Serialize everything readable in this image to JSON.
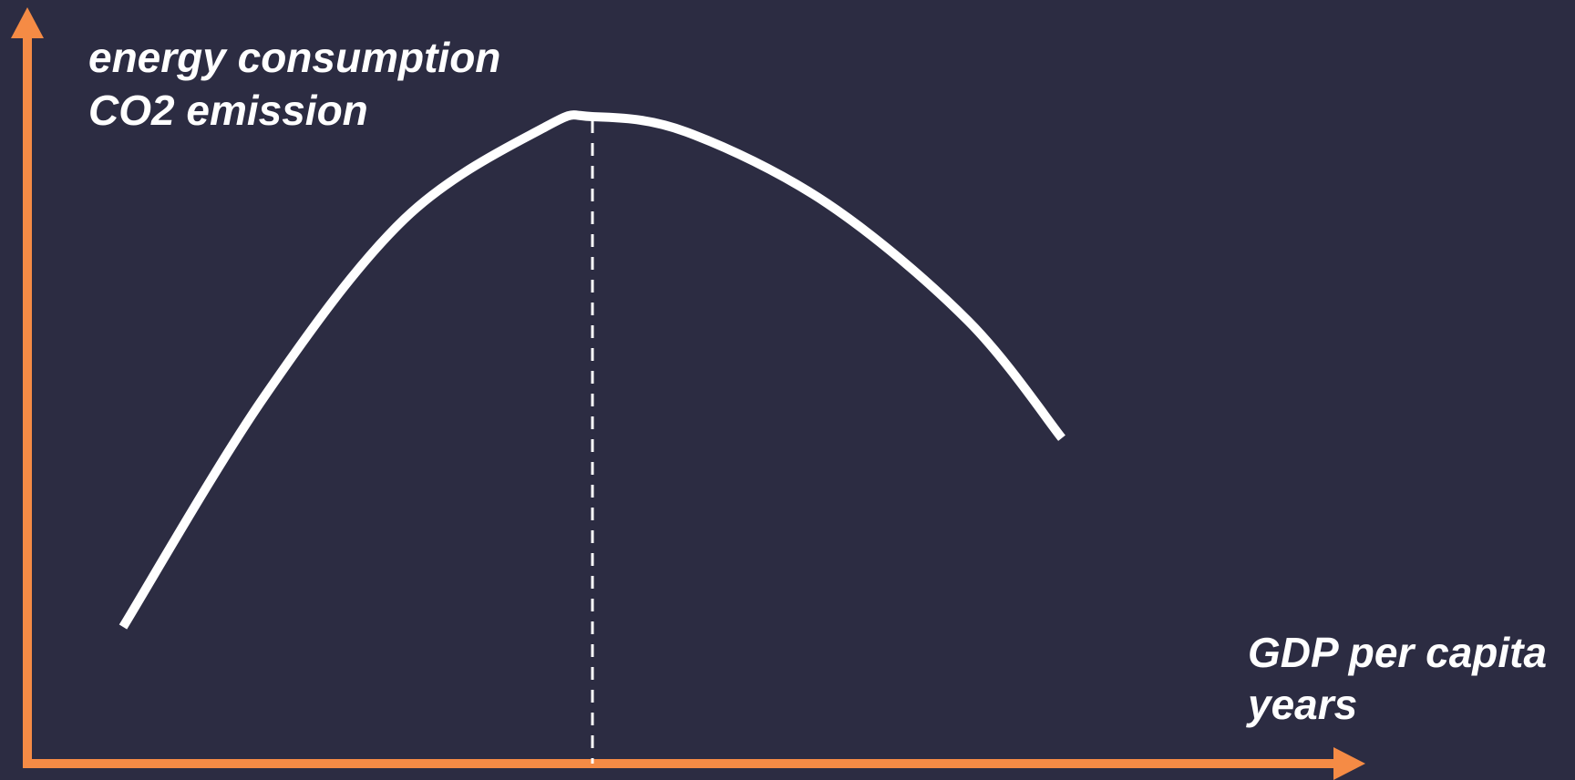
{
  "chart_data": {
    "type": "line",
    "description_shape": "inverted-U",
    "y_axis": {
      "labels": [
        "energy consumption",
        "CO2 emission"
      ]
    },
    "x_axis": {
      "labels": [
        "GDP per capita",
        "years"
      ]
    },
    "peak_marker": "dashed-vertical-line",
    "series": [
      {
        "x": [
          0.0,
          0.15,
          0.3,
          0.45,
          0.5,
          0.6,
          0.75,
          0.9,
          1.0
        ],
        "y": [
          0.0,
          0.45,
          0.8,
          0.98,
          1.0,
          0.97,
          0.83,
          0.6,
          0.37
        ]
      }
    ],
    "peak_x": 0.5,
    "xlim": [
      -0.1,
      1.15
    ],
    "ylim": [
      -0.27,
      1.1
    ]
  },
  "colors": {
    "background": "#2c2c42",
    "axis": "#f58b45",
    "curve": "#ffffff",
    "peak_line": "#ffffff",
    "text": "#ffffff"
  }
}
